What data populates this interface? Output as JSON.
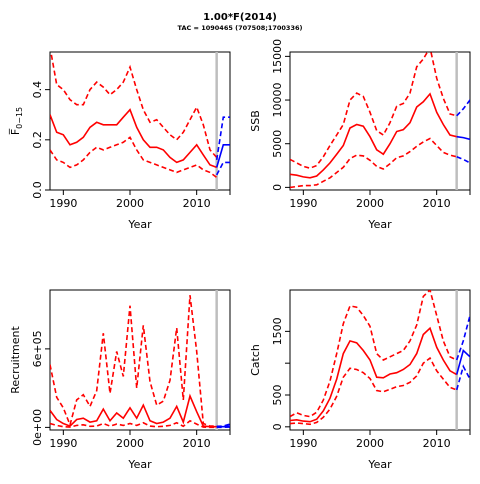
{
  "figure": {
    "title": "1.00*F(2014)",
    "subtitle": "TAC = 1090465 (707508;1700336)"
  },
  "colors": {
    "historical": "#ff0000",
    "projection": "#0000ff",
    "reference_line": "#bebebe"
  },
  "chart_data": [
    {
      "type": "line",
      "xlabel": "Year",
      "ylabel": "F̅ 0-15",
      "ylabel_main": "F̅",
      "ylabel_sub": "0−15",
      "xlim": [
        1988,
        2015
      ],
      "ylim": [
        0,
        0.55
      ],
      "xticks": [
        1990,
        2000,
        2010
      ],
      "yticks": [
        0.0,
        0.2,
        0.4
      ],
      "ytick_labels": [
        "0.0",
        "0.2",
        "0.4"
      ],
      "vline": 2013,
      "x": [
        1988,
        1989,
        1990,
        1991,
        1992,
        1993,
        1994,
        1995,
        1996,
        1997,
        1998,
        1999,
        2000,
        2001,
        2002,
        2003,
        2004,
        2005,
        2006,
        2007,
        2008,
        2009,
        2010,
        2011,
        2012,
        2013
      ],
      "series": [
        {
          "role": "estimate",
          "values": [
            0.3,
            0.23,
            0.22,
            0.18,
            0.19,
            0.21,
            0.25,
            0.27,
            0.26,
            0.26,
            0.26,
            0.29,
            0.32,
            0.25,
            0.2,
            0.17,
            0.17,
            0.16,
            0.13,
            0.11,
            0.12,
            0.15,
            0.18,
            0.14,
            0.1,
            0.09
          ]
        },
        {
          "role": "upper",
          "values": [
            0.57,
            0.42,
            0.4,
            0.36,
            0.34,
            0.34,
            0.4,
            0.43,
            0.41,
            0.38,
            0.4,
            0.43,
            0.49,
            0.4,
            0.32,
            0.27,
            0.28,
            0.25,
            0.22,
            0.2,
            0.23,
            0.28,
            0.33,
            0.26,
            0.16,
            0.13
          ]
        },
        {
          "role": "lower",
          "values": [
            0.16,
            0.12,
            0.11,
            0.09,
            0.1,
            0.12,
            0.15,
            0.17,
            0.16,
            0.17,
            0.18,
            0.19,
            0.21,
            0.16,
            0.12,
            0.11,
            0.1,
            0.09,
            0.08,
            0.07,
            0.08,
            0.09,
            0.1,
            0.08,
            0.07,
            0.05
          ]
        },
        {
          "role": "projection",
          "x": [
            2013,
            2014,
            2015,
            2016
          ],
          "values": [
            0.09,
            0.18,
            0.18,
            0.18
          ]
        },
        {
          "role": "projection-upper",
          "x": [
            2013,
            2014,
            2015,
            2016
          ],
          "values": [
            0.12,
            0.29,
            0.29,
            0.29
          ]
        },
        {
          "role": "projection-lower",
          "x": [
            2013,
            2014,
            2015,
            2016
          ],
          "values": [
            0.06,
            0.11,
            0.11,
            0.11
          ]
        }
      ]
    },
    {
      "type": "line",
      "xlabel": "Year",
      "ylabel": "SSB",
      "xlim": [
        1988,
        2015
      ],
      "ylim": [
        -300,
        15500
      ],
      "xticks": [
        1990,
        2000,
        2010
      ],
      "yticks": [
        0,
        5000,
        10000,
        15000
      ],
      "ytick_labels": [
        "0",
        "5000",
        "10000",
        "15000"
      ],
      "vline": 2013,
      "x": [
        1988,
        1989,
        1990,
        1991,
        1992,
        1993,
        1994,
        1995,
        1996,
        1997,
        1998,
        1999,
        2000,
        2001,
        2002,
        2003,
        2004,
        2005,
        2006,
        2007,
        2008,
        2009,
        2010,
        2011,
        2012,
        2013
      ],
      "series": [
        {
          "role": "estimate",
          "values": [
            1500,
            1400,
            1200,
            1100,
            1300,
            2000,
            2800,
            3800,
            4800,
            6800,
            7200,
            7000,
            5800,
            4300,
            3800,
            5000,
            6400,
            6600,
            7400,
            9200,
            9800,
            10700,
            8600,
            7200,
            6000,
            5800
          ]
        },
        {
          "role": "upper",
          "values": [
            3200,
            2800,
            2400,
            2200,
            2500,
            3500,
            4800,
            6000,
            7200,
            10000,
            10800,
            10400,
            8600,
            6500,
            6000,
            7400,
            9300,
            9600,
            10800,
            13800,
            14700,
            16000,
            12500,
            10200,
            8400,
            8200
          ]
        },
        {
          "role": "lower",
          "values": [
            0,
            100,
            200,
            200,
            300,
            700,
            1100,
            1700,
            2300,
            3300,
            3700,
            3600,
            3100,
            2400,
            2100,
            2700,
            3400,
            3600,
            4100,
            4700,
            5200,
            5600,
            4800,
            4000,
            3700,
            3500
          ]
        },
        {
          "role": "projection",
          "x": [
            2013,
            2014,
            2015,
            2016
          ],
          "values": [
            5800,
            5700,
            5500,
            5000
          ]
        },
        {
          "role": "projection-upper",
          "x": [
            2013,
            2014,
            2015,
            2016
          ],
          "values": [
            8200,
            9000,
            10000,
            12000
          ]
        },
        {
          "role": "projection-lower",
          "x": [
            2013,
            2014,
            2015,
            2016
          ],
          "values": [
            3500,
            3200,
            2800,
            1700
          ]
        }
      ]
    },
    {
      "type": "line",
      "xlabel": "Year",
      "ylabel": "Recruitment",
      "xlim": [
        1988,
        2015
      ],
      "ylim": [
        -20000,
        1050000
      ],
      "xticks": [
        1990,
        2000,
        2010
      ],
      "yticks": [
        0,
        600000
      ],
      "ytick_labels": [
        "0e+00",
        "6e+05"
      ],
      "vline": 2013,
      "x": [
        1988,
        1989,
        1990,
        1991,
        1992,
        1993,
        1994,
        1995,
        1996,
        1997,
        1998,
        1999,
        2000,
        2001,
        2002,
        2003,
        2004,
        2005,
        2006,
        2007,
        2008,
        2009,
        2010,
        2011,
        2012,
        2013
      ],
      "series": [
        {
          "role": "estimate",
          "values": [
            130000,
            60000,
            30000,
            10000,
            60000,
            70000,
            40000,
            50000,
            140000,
            50000,
            110000,
            70000,
            150000,
            70000,
            170000,
            50000,
            30000,
            40000,
            70000,
            160000,
            40000,
            240000,
            120000,
            10000,
            5000,
            5000
          ]
        },
        {
          "role": "upper",
          "values": [
            480000,
            230000,
            150000,
            20000,
            210000,
            250000,
            160000,
            280000,
            720000,
            260000,
            580000,
            390000,
            930000,
            300000,
            780000,
            350000,
            170000,
            200000,
            360000,
            760000,
            210000,
            1010000,
            580000,
            30000,
            10000,
            10000
          ]
        },
        {
          "role": "lower",
          "values": [
            30000,
            15000,
            5000,
            2000,
            15000,
            20000,
            8000,
            10000,
            30000,
            10000,
            25000,
            15000,
            30000,
            15000,
            35000,
            10000,
            5000,
            8000,
            15000,
            35000,
            8000,
            50000,
            25000,
            2000,
            1000,
            1000
          ]
        },
        {
          "role": "projection",
          "x": [
            2013,
            2014,
            2015,
            2016
          ],
          "values": [
            5000,
            5000,
            10000,
            12000
          ]
        },
        {
          "role": "projection-upper",
          "x": [
            2013,
            2014,
            2015,
            2016
          ],
          "values": [
            8000,
            10000,
            25000,
            30000
          ]
        },
        {
          "role": "projection-lower",
          "x": [
            2013,
            2014,
            2015,
            2016
          ],
          "values": [
            1000,
            1000,
            2000,
            2000
          ]
        }
      ]
    },
    {
      "type": "line",
      "xlabel": "Year",
      "ylabel": "Catch",
      "xlim": [
        1988,
        2015
      ],
      "ylim": [
        -50,
        2150
      ],
      "xticks": [
        1990,
        2000,
        2010
      ],
      "yticks": [
        0,
        500,
        1000,
        1500
      ],
      "ytick_labels": [
        "0",
        "500",
        "",
        "1500"
      ],
      "vline": 2013,
      "x": [
        1988,
        1989,
        1990,
        1991,
        1992,
        1993,
        1994,
        1995,
        1996,
        1997,
        1998,
        1999,
        2000,
        2001,
        2002,
        2003,
        2004,
        2005,
        2006,
        2007,
        2008,
        2009,
        2010,
        2011,
        2012,
        2013
      ],
      "series": [
        {
          "role": "estimate",
          "values": [
            100,
            110,
            90,
            80,
            120,
            250,
            450,
            750,
            1150,
            1350,
            1320,
            1200,
            1050,
            780,
            770,
            830,
            850,
            900,
            980,
            1150,
            1450,
            1550,
            1250,
            1050,
            880,
            820
          ]
        },
        {
          "role": "upper",
          "values": [
            160,
            220,
            180,
            160,
            230,
            420,
            720,
            1150,
            1620,
            1900,
            1880,
            1750,
            1580,
            1150,
            1050,
            1100,
            1150,
            1200,
            1350,
            1600,
            2050,
            2150,
            1750,
            1350,
            1100,
            1050
          ]
        },
        {
          "role": "lower",
          "values": [
            50,
            60,
            50,
            40,
            70,
            150,
            280,
            480,
            780,
            920,
            900,
            850,
            760,
            570,
            550,
            590,
            630,
            650,
            700,
            800,
            1000,
            1080,
            880,
            750,
            620,
            580
          ]
        },
        {
          "role": "projection",
          "x": [
            2013,
            2014,
            2015,
            2016
          ],
          "values": [
            820,
            1200,
            1100,
            1000
          ]
        },
        {
          "role": "projection-upper",
          "x": [
            2013,
            2014,
            2015,
            2016
          ],
          "values": [
            1050,
            1350,
            1750,
            2100
          ]
        },
        {
          "role": "projection-lower",
          "x": [
            2013,
            2014,
            2015,
            2016
          ],
          "values": [
            580,
            950,
            750,
            550
          ]
        }
      ]
    }
  ]
}
